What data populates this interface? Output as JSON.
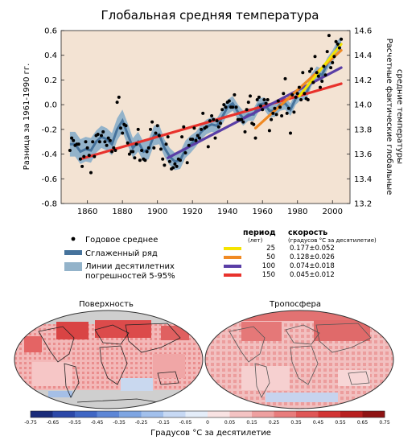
{
  "chart_data": {
    "type": "scatter",
    "title": "Глобальная средняя температура",
    "ylabel": "Разница за 1961-1990 гг.",
    "y2label": [
      "Расчетные фактические глобальные",
      "средние температуры"
    ],
    "xlim": [
      1845,
      2010
    ],
    "ylim": [
      -0.8,
      0.6
    ],
    "y2lim": [
      13.2,
      14.6
    ],
    "xticks": [
      "1860",
      "1880",
      "1900",
      "1920",
      "1940",
      "1960",
      "1980",
      "2000"
    ],
    "yticks": [
      "0.6",
      "0.4",
      "0.2",
      "0.0",
      "-0.2",
      "-0.4",
      "-0.6",
      "-0.8"
    ],
    "y2ticks": [
      "14.6",
      "14.4",
      "14.2",
      "14.0",
      "13.8",
      "13.6",
      "13.4",
      "13.2"
    ],
    "plot_background": "#f3e3d3",
    "annual": {
      "x": [
        1850,
        1851,
        1852,
        1853,
        1854,
        1855,
        1856,
        1857,
        1858,
        1859,
        1860,
        1861,
        1862,
        1863,
        1864,
        1865,
        1866,
        1867,
        1868,
        1869,
        1870,
        1871,
        1872,
        1873,
        1874,
        1875,
        1876,
        1877,
        1878,
        1879,
        1880,
        1881,
        1882,
        1883,
        1884,
        1885,
        1886,
        1887,
        1888,
        1889,
        1890,
        1891,
        1892,
        1893,
        1894,
        1895,
        1896,
        1897,
        1898,
        1899,
        1900,
        1901,
        1902,
        1903,
        1904,
        1905,
        1906,
        1907,
        1908,
        1909,
        1910,
        1911,
        1912,
        1913,
        1914,
        1915,
        1916,
        1917,
        1918,
        1919,
        1920,
        1921,
        1922,
        1923,
        1924,
        1925,
        1926,
        1927,
        1928,
        1929,
        1930,
        1931,
        1932,
        1933,
        1934,
        1935,
        1936,
        1937,
        1938,
        1939,
        1940,
        1941,
        1942,
        1943,
        1944,
        1945,
        1946,
        1947,
        1948,
        1949,
        1950,
        1951,
        1952,
        1953,
        1954,
        1955,
        1956,
        1957,
        1958,
        1959,
        1960,
        1961,
        1962,
        1963,
        1964,
        1965,
        1966,
        1967,
        1968,
        1969,
        1970,
        1971,
        1972,
        1973,
        1974,
        1975,
        1976,
        1977,
        1978,
        1979,
        1980,
        1981,
        1982,
        1983,
        1984,
        1985,
        1986,
        1987,
        1988,
        1989,
        1990,
        1991,
        1992,
        1993,
        1994,
        1995,
        1996,
        1997,
        1998,
        1999,
        2000,
        2001,
        2002,
        2003,
        2004,
        2005
      ],
      "y": [
        -0.37,
        -0.27,
        -0.29,
        -0.33,
        -0.32,
        -0.32,
        -0.44,
        -0.5,
        -0.42,
        -0.3,
        -0.35,
        -0.41,
        -0.55,
        -0.3,
        -0.42,
        -0.25,
        -0.24,
        -0.3,
        -0.25,
        -0.22,
        -0.3,
        -0.33,
        -0.27,
        -0.29,
        -0.38,
        -0.35,
        -0.37,
        0.02,
        0.06,
        -0.19,
        -0.23,
        -0.16,
        -0.17,
        -0.31,
        -0.4,
        -0.38,
        -0.38,
        -0.43,
        -0.32,
        -0.2,
        -0.45,
        -0.37,
        -0.44,
        -0.45,
        -0.38,
        -0.35,
        -0.2,
        -0.14,
        -0.35,
        -0.23,
        -0.17,
        -0.25,
        -0.36,
        -0.44,
        -0.49,
        -0.32,
        -0.26,
        -0.46,
        -0.52,
        -0.51,
        -0.48,
        -0.5,
        -0.44,
        -0.45,
        -0.26,
        -0.18,
        -0.39,
        -0.47,
        -0.33,
        -0.28,
        -0.28,
        -0.19,
        -0.29,
        -0.25,
        -0.27,
        -0.2,
        -0.07,
        -0.19,
        -0.18,
        -0.34,
        -0.13,
        -0.09,
        -0.12,
        -0.27,
        -0.13,
        -0.18,
        -0.15,
        -0.04,
        0.0,
        -0.02,
        0.02,
        0.03,
        -0.02,
        -0.02,
        0.08,
        -0.02,
        -0.12,
        -0.12,
        -0.12,
        -0.14,
        -0.22,
        -0.04,
        0.02,
        0.07,
        -0.15,
        -0.16,
        -0.27,
        0.04,
        0.06,
        -0.01,
        -0.04,
        0.04,
        0.01,
        0.04,
        -0.21,
        -0.12,
        -0.07,
        -0.03,
        -0.08,
        0.03,
        -0.02,
        -0.09,
        0.09,
        0.21,
        -0.07,
        -0.03,
        -0.23,
        0.08,
        -0.06,
        0.06,
        0.09,
        0.14,
        0.04,
        0.26,
        0.09,
        0.05,
        0.04,
        0.27,
        0.29,
        0.18,
        0.39,
        0.26,
        0.23,
        0.14,
        0.19,
        0.31,
        0.24,
        0.43,
        0.56,
        0.3,
        0.34,
        0.39,
        0.51,
        0.49,
        0.46,
        0.53
      ]
    },
    "smoothed": {
      "x": [
        1850,
        1853,
        1856,
        1859,
        1862,
        1865,
        1868,
        1871,
        1874,
        1877,
        1880,
        1883,
        1886,
        1889,
        1892,
        1895,
        1898,
        1901,
        1904,
        1907,
        1910,
        1913,
        1916,
        1919,
        1922,
        1925,
        1928,
        1931,
        1934,
        1937,
        1940,
        1943,
        1946,
        1949,
        1952,
        1955,
        1958,
        1961,
        1964,
        1967,
        1970,
        1973,
        1976,
        1979,
        1982,
        1985,
        1988,
        1991,
        1994,
        1997,
        2000,
        2003,
        2005
      ],
      "y": [
        -0.32,
        -0.32,
        -0.38,
        -0.36,
        -0.37,
        -0.3,
        -0.26,
        -0.28,
        -0.32,
        -0.2,
        -0.13,
        -0.24,
        -0.35,
        -0.3,
        -0.38,
        -0.36,
        -0.25,
        -0.24,
        -0.35,
        -0.42,
        -0.46,
        -0.45,
        -0.36,
        -0.32,
        -0.28,
        -0.22,
        -0.18,
        -0.16,
        -0.17,
        -0.1,
        -0.02,
        0.01,
        -0.06,
        -0.11,
        -0.08,
        -0.08,
        0.0,
        0.01,
        -0.05,
        -0.05,
        0.0,
        0.01,
        -0.04,
        0.05,
        0.09,
        0.09,
        0.2,
        0.26,
        0.24,
        0.33,
        0.39,
        0.47,
        0.5
      ],
      "uncertainty": [
        0.1,
        0.1,
        0.1,
        0.1,
        0.1,
        0.09,
        0.09,
        0.09,
        0.09,
        0.09,
        0.09,
        0.09,
        0.08,
        0.08,
        0.08,
        0.08,
        0.08,
        0.08,
        0.07,
        0.07,
        0.07,
        0.07,
        0.07,
        0.07,
        0.06,
        0.06,
        0.06,
        0.06,
        0.06,
        0.06,
        0.06,
        0.06,
        0.06,
        0.06,
        0.05,
        0.05,
        0.05,
        0.05,
        0.05,
        0.05,
        0.05,
        0.05,
        0.05,
        0.05,
        0.05,
        0.05,
        0.05,
        0.05,
        0.05,
        0.05,
        0.05,
        0.05,
        0.05
      ]
    },
    "trends": [
      {
        "period": "25",
        "rate": "0.177±0.052",
        "color": "#f5e400",
        "x": [
          1981,
          2005
        ],
        "y": [
          0.07,
          0.49
        ]
      },
      {
        "period": "50",
        "rate": "0.128±0.026",
        "color": "#f08a24",
        "x": [
          1956,
          2005
        ],
        "y": [
          -0.19,
          0.44
        ]
      },
      {
        "period": "100",
        "rate": "0.074±0.018",
        "color": "#5a3ea6",
        "x": [
          1906,
          2005
        ],
        "y": [
          -0.43,
          0.3
        ]
      },
      {
        "period": "150",
        "rate": "0.045±0.012",
        "color": "#e8322c",
        "x": [
          1856,
          2005
        ],
        "y": [
          -0.44,
          0.17
        ]
      }
    ],
    "legend": {
      "annual": "Годовое среднее",
      "smoothed": "Сглаженный ряд",
      "band": "Линии десятилетних погрешностей 5-95%",
      "period_header": "период",
      "period_unit": "(лет)",
      "rate_header": "скорость",
      "rate_unit": "(градусов °С за десятилетие)"
    },
    "maps": [
      {
        "title": "Поверхность"
      },
      {
        "title": "Тропосфера"
      }
    ],
    "colorbar": {
      "ticks": [
        "-0.75",
        "-0.65",
        "-0.55",
        "-0.45",
        "-0.35",
        "-0.25",
        "-0.15",
        "-0.05",
        "0",
        "0.05",
        "0.15",
        "0.25",
        "0.35",
        "0.45",
        "0.55",
        "0.65",
        "0.75"
      ],
      "colors": [
        "#1a2c7a",
        "#2c48a8",
        "#3f66c4",
        "#5d86d6",
        "#7ea5e2",
        "#a2c0ec",
        "#c7d9f4",
        "#e4edf9",
        "#f9e3e3",
        "#f4c3c3",
        "#eea0a0",
        "#e87c7c",
        "#df5656",
        "#d23434",
        "#b81f1f",
        "#8f1414"
      ],
      "label": "Градусов °С  за десятилетие"
    }
  }
}
